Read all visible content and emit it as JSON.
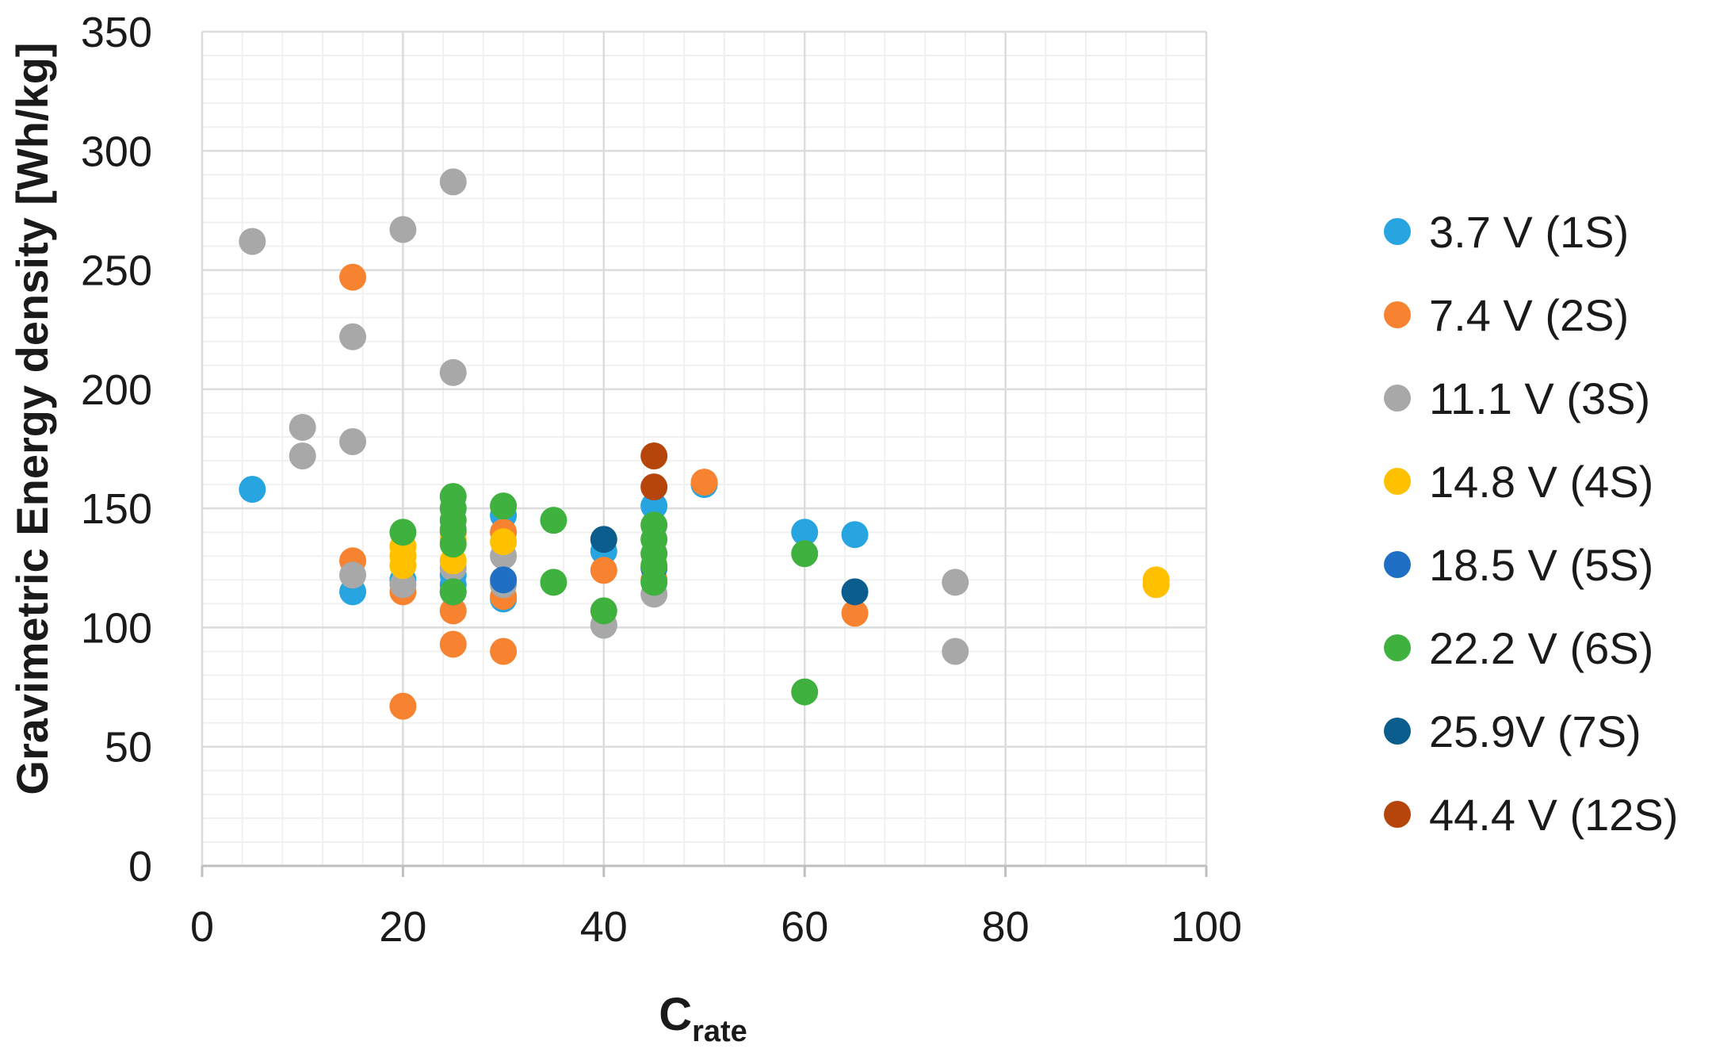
{
  "chart_data": {
    "type": "scatter",
    "xlabel": "C",
    "xlabel_subscript": "rate",
    "ylabel": "Gravimetric Energy density [Wh/kg]",
    "xlim": [
      0,
      100
    ],
    "ylim": [
      0,
      350
    ],
    "x_ticks": [
      0,
      20,
      40,
      60,
      80,
      100
    ],
    "y_ticks": [
      0,
      50,
      100,
      150,
      200,
      250,
      300,
      350
    ],
    "grid": true,
    "legend_position": "right",
    "series": [
      {
        "name": "3.7 V (1S)",
        "color": "#26a5e0",
        "points": [
          [
            5,
            158
          ],
          [
            15,
            115
          ],
          [
            20,
            120
          ],
          [
            25,
            118
          ],
          [
            25,
            122
          ],
          [
            30,
            112
          ],
          [
            30,
            147
          ],
          [
            40,
            101
          ],
          [
            40,
            132
          ],
          [
            45,
            151
          ],
          [
            50,
            160
          ],
          [
            60,
            140
          ],
          [
            65,
            139
          ]
        ]
      },
      {
        "name": "7.4 V (2S)",
        "color": "#f7822f",
        "points": [
          [
            15,
            247
          ],
          [
            15,
            128
          ],
          [
            20,
            67
          ],
          [
            20,
            115
          ],
          [
            25,
            93
          ],
          [
            25,
            107
          ],
          [
            25,
            140
          ],
          [
            30,
            90
          ],
          [
            30,
            113
          ],
          [
            30,
            140
          ],
          [
            40,
            124
          ],
          [
            45,
            120
          ],
          [
            50,
            161
          ],
          [
            65,
            106
          ]
        ]
      },
      {
        "name": "11.1 V (3S)",
        "color": "#a8a8a8",
        "points": [
          [
            5,
            262
          ],
          [
            10,
            172
          ],
          [
            10,
            184
          ],
          [
            15,
            178
          ],
          [
            15,
            222
          ],
          [
            15,
            122
          ],
          [
            20,
            267
          ],
          [
            20,
            118
          ],
          [
            25,
            287
          ],
          [
            25,
            207
          ],
          [
            25,
            125
          ],
          [
            30,
            118
          ],
          [
            30,
            130
          ],
          [
            40,
            101
          ],
          [
            45,
            114
          ],
          [
            75,
            90
          ],
          [
            75,
            119
          ]
        ]
      },
      {
        "name": "14.8 V (4S)",
        "color": "#ffc000",
        "points": [
          [
            20,
            126
          ],
          [
            20,
            130
          ],
          [
            20,
            134
          ],
          [
            25,
            128
          ],
          [
            25,
            137
          ],
          [
            30,
            136
          ],
          [
            95,
            118
          ],
          [
            95,
            120
          ]
        ]
      },
      {
        "name": "18.5 V (5S)",
        "color": "#1f70c4",
        "points": [
          [
            25,
            115
          ],
          [
            30,
            120
          ],
          [
            45,
            125
          ]
        ]
      },
      {
        "name": "22.2 V (6S)",
        "color": "#3fb13f",
        "points": [
          [
            20,
            140
          ],
          [
            25,
            115
          ],
          [
            25,
            135
          ],
          [
            25,
            141
          ],
          [
            25,
            145
          ],
          [
            25,
            150
          ],
          [
            25,
            155
          ],
          [
            30,
            151
          ],
          [
            35,
            119
          ],
          [
            35,
            145
          ],
          [
            40,
            107
          ],
          [
            45,
            119
          ],
          [
            45,
            126
          ],
          [
            45,
            131
          ],
          [
            45,
            137
          ],
          [
            45,
            143
          ],
          [
            60,
            73
          ],
          [
            60,
            131
          ]
        ]
      },
      {
        "name": "25.9V (7S)",
        "color": "#0a5d8c",
        "points": [
          [
            40,
            137
          ],
          [
            65,
            115
          ]
        ]
      },
      {
        "name": "44.4 V (12S)",
        "color": "#b5450b",
        "points": [
          [
            45,
            159
          ],
          [
            45,
            172
          ]
        ]
      }
    ]
  }
}
